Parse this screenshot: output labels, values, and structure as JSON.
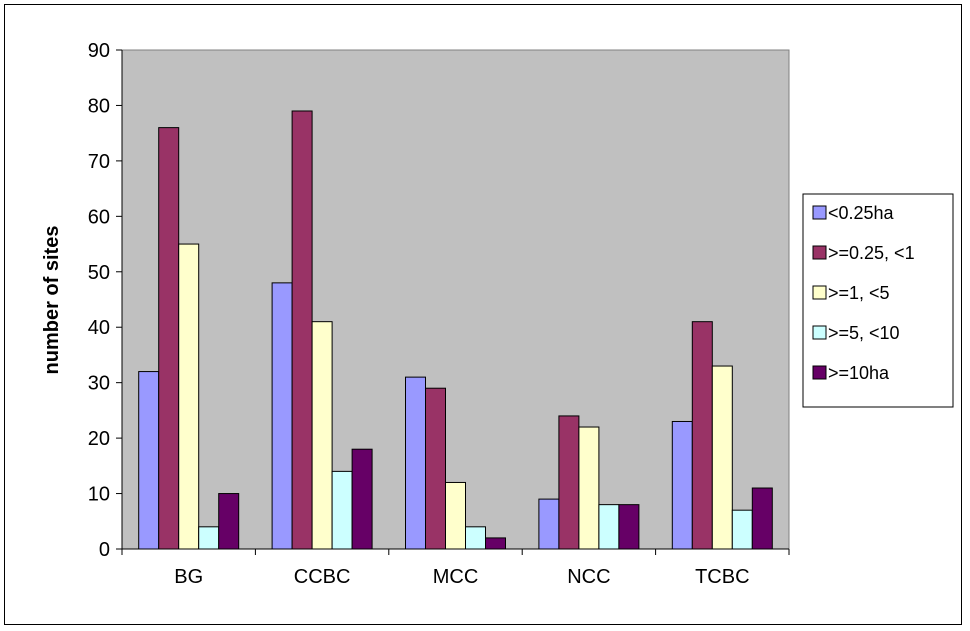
{
  "chart_data": {
    "type": "bar",
    "title": "",
    "xlabel": "",
    "ylabel": "number of sites",
    "ylim": [
      0,
      90
    ],
    "yticks": [
      0,
      10,
      20,
      30,
      40,
      50,
      60,
      70,
      80,
      90
    ],
    "grid": false,
    "legend_position": "right",
    "plot_background": "#C0C0C0",
    "categories": [
      "BG",
      "CCBC",
      "MCC",
      "NCC",
      "TCBC"
    ],
    "series": [
      {
        "name": "<0.25ha",
        "color": "#9999FF",
        "values": [
          32,
          48,
          31,
          9,
          23
        ]
      },
      {
        "name": ">=0.25, <1",
        "color": "#993366",
        "values": [
          76,
          79,
          29,
          24,
          41
        ]
      },
      {
        "name": ">=1, <5",
        "color": "#FFFFCC",
        "values": [
          55,
          41,
          12,
          22,
          33
        ]
      },
      {
        "name": ">=5, <10",
        "color": "#CCFFFF",
        "values": [
          4,
          14,
          4,
          8,
          7
        ]
      },
      {
        "name": ">=10ha",
        "color": "#660066",
        "values": [
          10,
          18,
          2,
          8,
          11
        ]
      }
    ]
  }
}
